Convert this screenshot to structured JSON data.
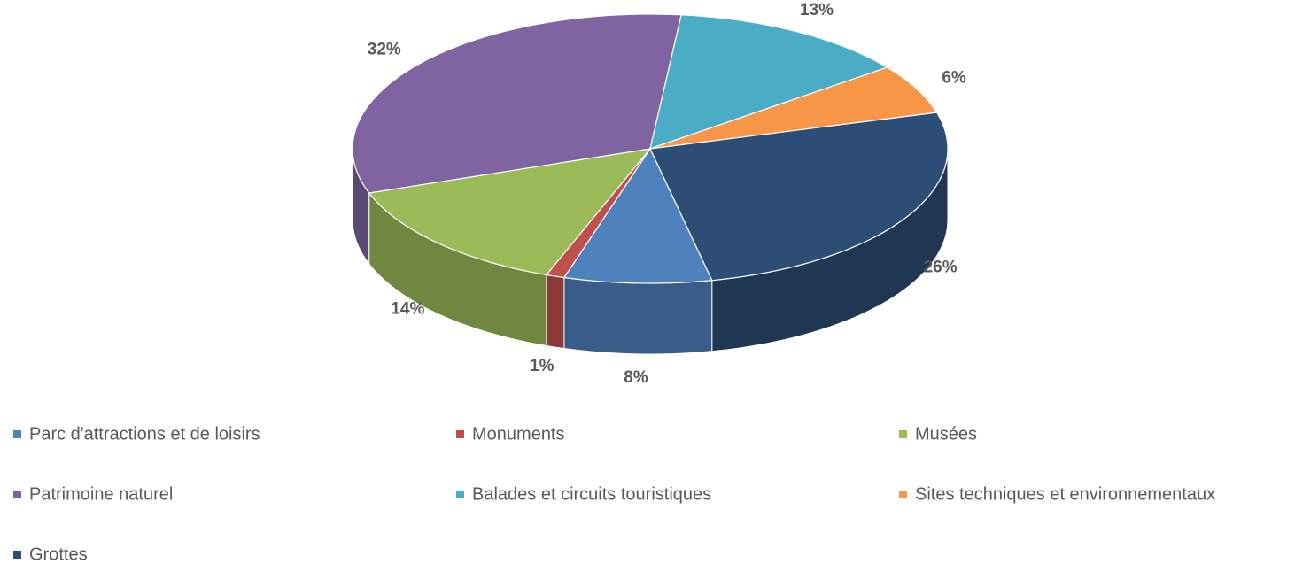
{
  "chart_data": {
    "type": "pie",
    "categories": [
      "Parc d'attractions et de loisirs",
      "Monuments",
      "Musées",
      "Patrimoine naturel",
      "Balades et circuits touristiques",
      "Sites techniques et environnementaux",
      "Grottes"
    ],
    "values": [
      8,
      1,
      14,
      32,
      13,
      6,
      26
    ],
    "value_labels": [
      "8%",
      "1%",
      "14%",
      "32%",
      "13%",
      "6%",
      "26%"
    ],
    "colors": [
      "#4f81bd",
      "#c0504d",
      "#9bbb59",
      "#8064a2",
      "#4bacc6",
      "#f79646",
      "#2c4d75"
    ],
    "legend": "bottom"
  }
}
